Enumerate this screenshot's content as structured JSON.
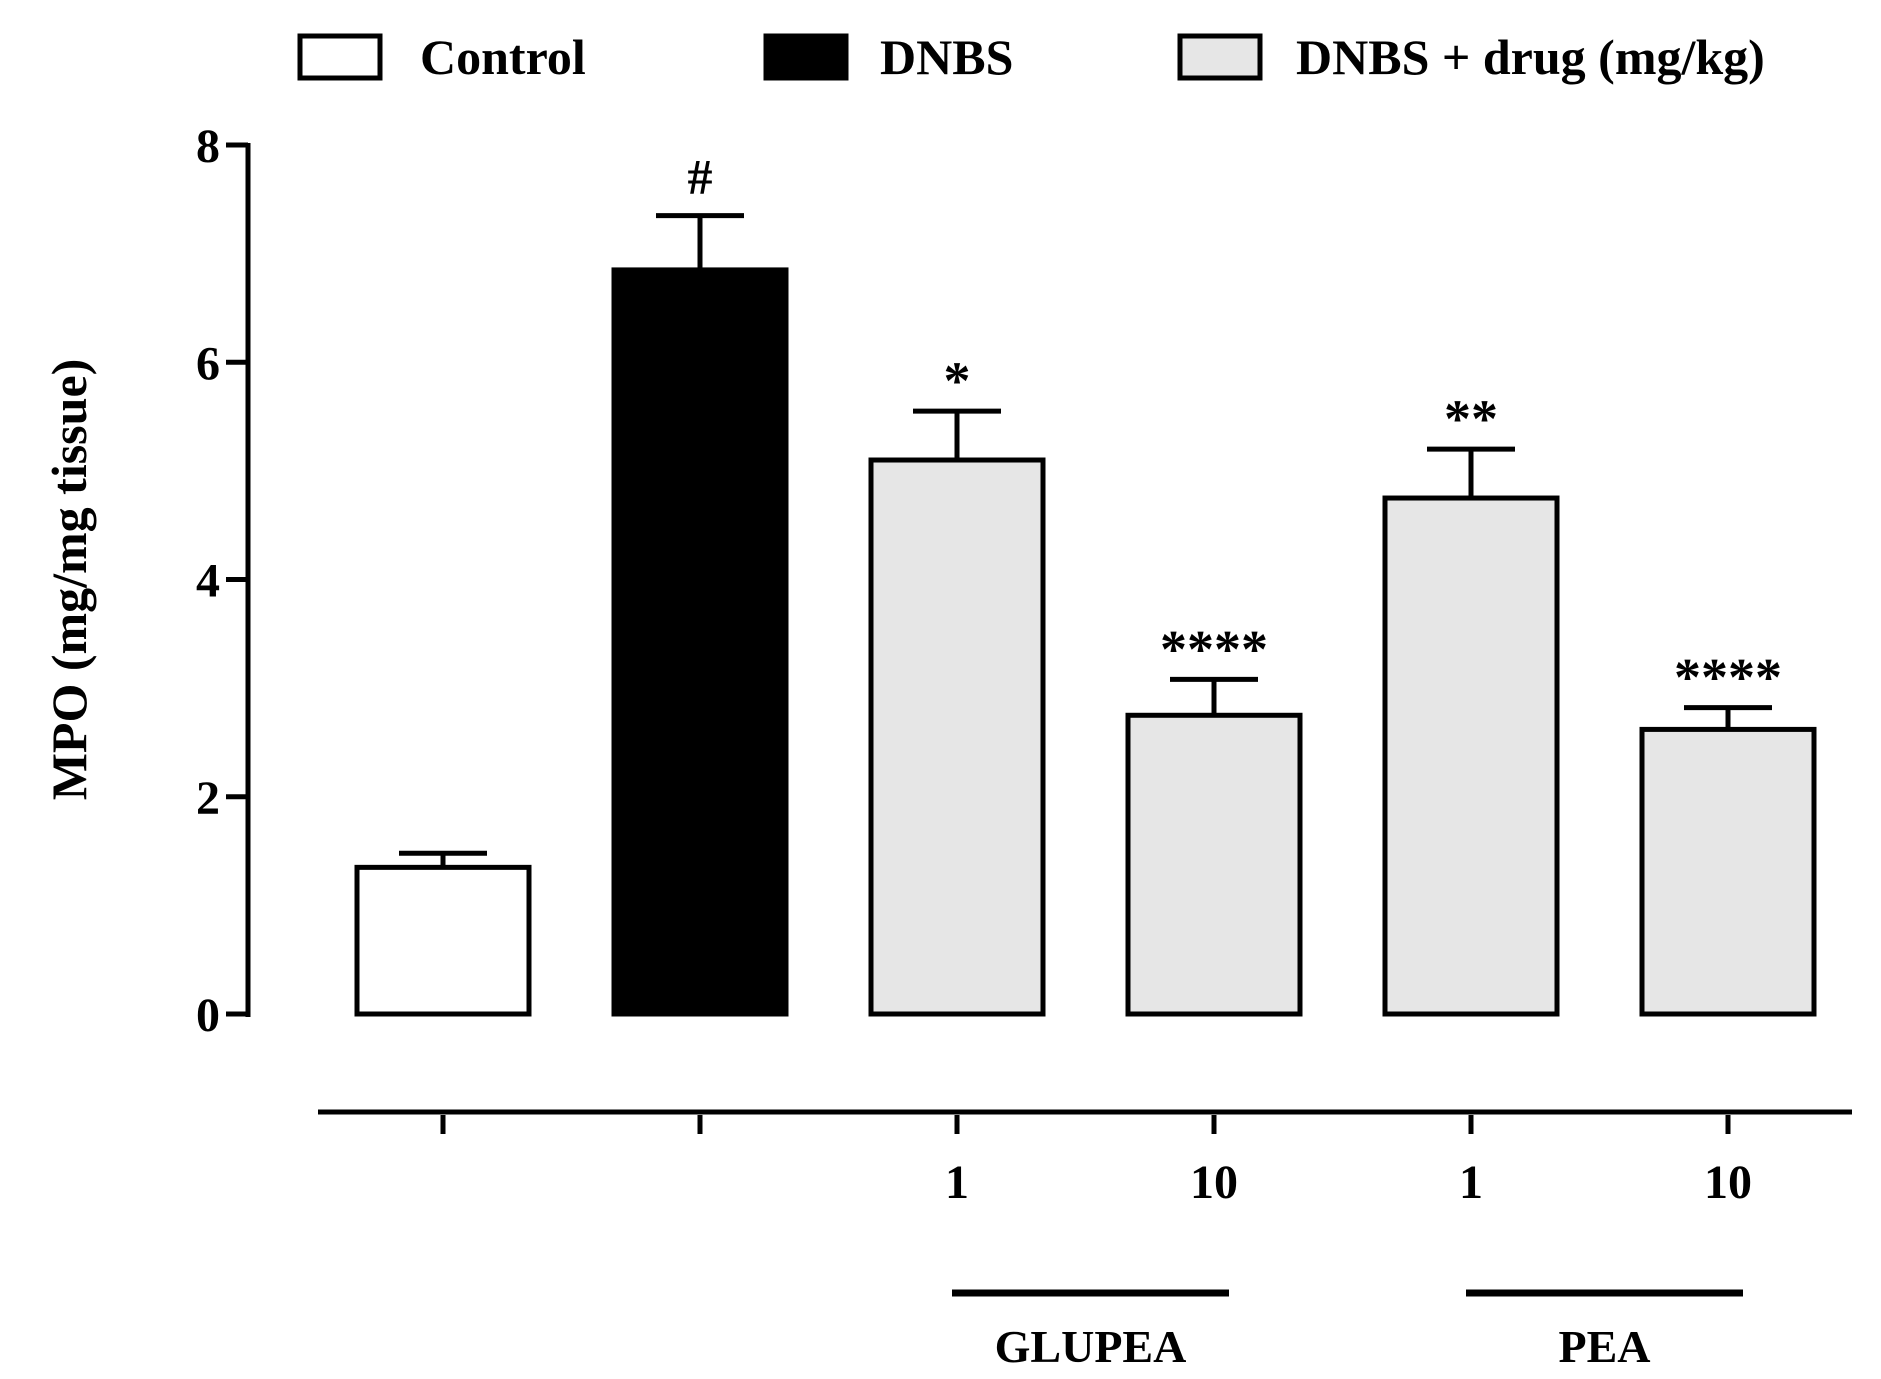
{
  "chart_data": {
    "type": "bar",
    "ylabel": "MPO (mg/mg tissue)",
    "xlabel": "",
    "ylim": [
      0,
      8
    ],
    "yticks": [
      0,
      2,
      4,
      6,
      8
    ],
    "legend": {
      "position": "top",
      "items": [
        {
          "label": "Control",
          "color": "#ffffff"
        },
        {
          "label": "DNBS",
          "color": "#000000"
        },
        {
          "label": "DNBS + drug (mg/kg)",
          "color": "#e6e6e6"
        }
      ]
    },
    "bars": [
      {
        "group": "Control",
        "dose": "",
        "value": 1.35,
        "error": 0.13,
        "annotation": "",
        "color": "#ffffff"
      },
      {
        "group": "DNBS",
        "dose": "",
        "value": 6.85,
        "error": 0.5,
        "annotation": "#",
        "color": "#000000"
      },
      {
        "group": "GLUPEA",
        "dose": "1",
        "value": 5.1,
        "error": 0.45,
        "annotation": "*",
        "color": "#e6e6e6"
      },
      {
        "group": "GLUPEA",
        "dose": "10",
        "value": 2.75,
        "error": 0.33,
        "annotation": "****",
        "color": "#e6e6e6"
      },
      {
        "group": "PEA",
        "dose": "1",
        "value": 4.75,
        "error": 0.45,
        "annotation": "**",
        "color": "#e6e6e6"
      },
      {
        "group": "PEA",
        "dose": "10",
        "value": 2.62,
        "error": 0.2,
        "annotation": "****",
        "color": "#e6e6e6"
      }
    ],
    "drug_groups": [
      {
        "label": "GLUPEA",
        "bars": [
          2,
          3
        ]
      },
      {
        "label": "PEA",
        "bars": [
          4,
          5
        ]
      }
    ]
  }
}
